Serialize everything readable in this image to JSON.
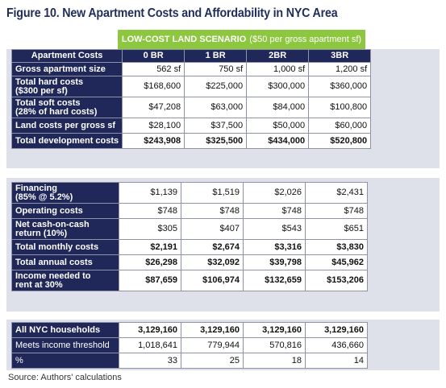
{
  "title": "Figure 10. New Apartment Costs and Affordability in NYC Area",
  "scenario": {
    "main": "LOW-COST LAND SCENARIO",
    "sub": "($50 per gross apartment sf)"
  },
  "columns": [
    "Apartment Costs",
    "0 BR",
    "1 BR",
    "2BR",
    "3BR"
  ],
  "section1": [
    {
      "label": "Gross apartment size",
      "values": [
        "562 sf",
        "750 sf",
        "1,000 sf",
        "1,200 sf"
      ],
      "bold": false
    },
    {
      "label": "Total hard costs",
      "label2": "($300 per sf)",
      "values": [
        "$168,600",
        "$225,000",
        "$300,000",
        "$360,000"
      ],
      "bold": false
    },
    {
      "label": "Total soft costs",
      "label2": "(28% of hard costs)",
      "values": [
        "$47,208",
        "$63,000",
        "$84,000",
        "$100,800"
      ],
      "bold": false
    },
    {
      "label": "Land costs per gross sf",
      "values": [
        "$28,100",
        "$37,500",
        "$50,000",
        "$60,000"
      ],
      "bold": false
    },
    {
      "label": "Total development costs",
      "values": [
        "$243,908",
        "$325,500",
        "$434,000",
        "$520,800"
      ],
      "bold": true
    }
  ],
  "section2": [
    {
      "label": "Financing",
      "label2": "(85% @ 5.2%)",
      "values": [
        "$1,139",
        "$1,519",
        "$2,026",
        "$2,431"
      ],
      "bold": false
    },
    {
      "label": "Operating costs",
      "values": [
        "$748",
        "$748",
        "$748",
        "$748"
      ],
      "bold": false
    },
    {
      "label": "Net cash-on-cash",
      "label2": "return (10%)",
      "values": [
        "$305",
        "$407",
        "$543",
        "$651"
      ],
      "bold": false
    },
    {
      "label": "Total monthly costs",
      "values": [
        "$2,191",
        "$2,674",
        "$3,316",
        "$3,830"
      ],
      "bold": true
    },
    {
      "label": "Total annual costs",
      "values": [
        "$26,298",
        "$32,092",
        "$39,798",
        "$45,962"
      ],
      "bold": true
    },
    {
      "label": "Income needed to",
      "label2": "rent at 30%",
      "values": [
        "$87,659",
        "$106,974",
        "$132,659",
        "$153,206"
      ],
      "bold": true
    }
  ],
  "section3": [
    {
      "label": "All NYC households",
      "values": [
        "3,129,160",
        "3,129,160",
        "3,129,160",
        "3,129,160"
      ],
      "bold": true,
      "plain_label": false
    },
    {
      "label": "Meets income threshold",
      "values": [
        "1,018,641",
        "779,944",
        "570,816",
        "436,660"
      ],
      "bold": false,
      "plain_label": true
    },
    {
      "label": "%",
      "values": [
        "33",
        "25",
        "18",
        "14"
      ],
      "bold": false,
      "plain_label": true
    }
  ],
  "source": "Source: Authors' calculations"
}
